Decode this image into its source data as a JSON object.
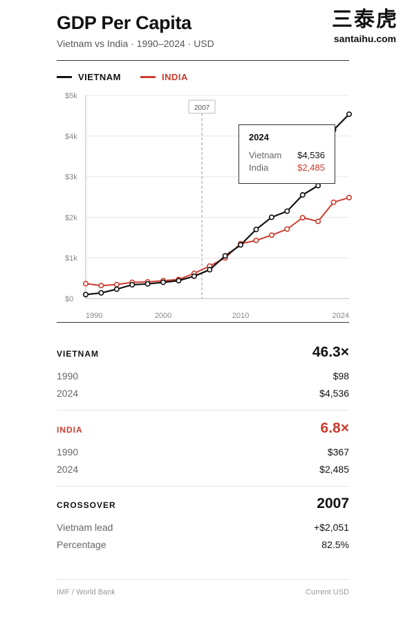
{
  "header": {
    "title": "GDP Per Capita",
    "subtitle": "Vietnam vs India · 1990–2024 · USD"
  },
  "logo": {
    "chinese": "三泰虎",
    "domain": "santaihu.com"
  },
  "colors": {
    "vietnam": "#111111",
    "india": "#cc3b2e"
  },
  "chart_data": {
    "type": "line",
    "title": "",
    "xlabel": "",
    "ylabel": "",
    "xlim": [
      1990,
      2024
    ],
    "ylim": [
      0,
      5000
    ],
    "x_ticks": [
      {
        "value": 1990,
        "label": "1990"
      },
      {
        "value": 2000,
        "label": "2000"
      },
      {
        "value": 2010,
        "label": "2010"
      },
      {
        "value": 2024,
        "label": "2024"
      }
    ],
    "y_ticks": [
      {
        "value": 0,
        "label": "$0"
      },
      {
        "value": 1000,
        "label": "$1k"
      },
      {
        "value": 2000,
        "label": "$2k"
      },
      {
        "value": 3000,
        "label": "$3k"
      },
      {
        "value": 4000,
        "label": "$4k"
      },
      {
        "value": 5000,
        "label": "$5k"
      }
    ],
    "grid": true,
    "legend": "top-left",
    "annotation": {
      "x": 2005,
      "label": "2007"
    },
    "series": [
      {
        "name": "VIETNAM",
        "x": [
          1990,
          1992,
          1994,
          1996,
          1998,
          2000,
          2002,
          2004,
          2006,
          2008,
          2010,
          2012,
          2014,
          2016,
          2018,
          2020,
          2022,
          2024
        ],
        "values": [
          98,
          140,
          230,
          340,
          360,
          400,
          440,
          550,
          710,
          1050,
          1320,
          1700,
          2000,
          2150,
          2550,
          2780,
          4150,
          4536
        ]
      },
      {
        "name": "INDIA",
        "x": [
          1990,
          1992,
          1994,
          1996,
          1998,
          2000,
          2002,
          2004,
          2006,
          2008,
          2010,
          2012,
          2014,
          2016,
          2018,
          2020,
          2022,
          2024
        ],
        "values": [
          367,
          320,
          345,
          400,
          410,
          440,
          470,
          620,
          800,
          1000,
          1350,
          1430,
          1560,
          1710,
          1990,
          1900,
          2370,
          2485
        ]
      }
    ]
  },
  "tooltip": {
    "year": "2024",
    "rows": [
      {
        "label": "Vietnam",
        "value": "$4,536"
      },
      {
        "label": "India",
        "value": "$2,485"
      }
    ]
  },
  "stats": {
    "vietnam": {
      "name": "VIETNAM",
      "multiple": "46.3×",
      "rows": [
        {
          "label": "1990",
          "value": "$98"
        },
        {
          "label": "2024",
          "value": "$4,536"
        }
      ]
    },
    "india": {
      "name": "INDIA",
      "multiple": "6.8×",
      "rows": [
        {
          "label": "1990",
          "value": "$367"
        },
        {
          "label": "2024",
          "value": "$2,485"
        }
      ]
    },
    "crossover": {
      "name": "CROSSOVER",
      "year": "2007",
      "rows": [
        {
          "label": "Vietnam lead",
          "value": "+$2,051"
        },
        {
          "label": "Percentage",
          "value": "82.5%"
        }
      ]
    }
  },
  "footer": {
    "source": "IMF / World Bank",
    "note": "Current USD"
  }
}
